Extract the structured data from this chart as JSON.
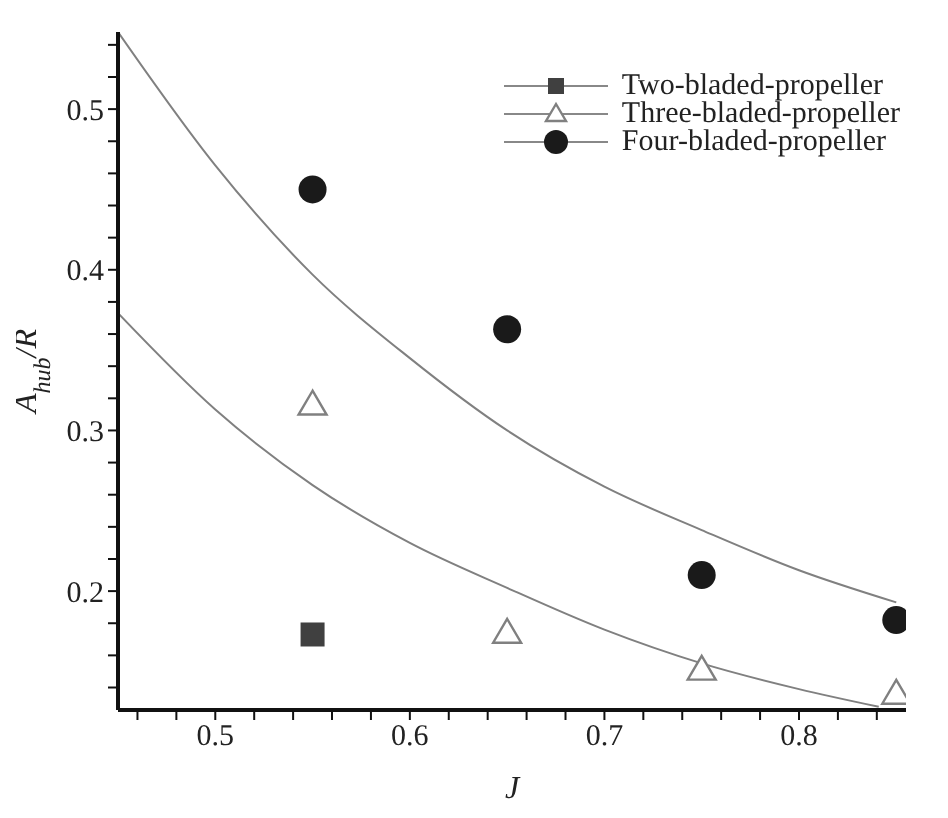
{
  "chart_data": {
    "type": "scatter",
    "xlabel": "J",
    "ylabel": "A$_{hub}$/R",
    "xlim": [
      0.45,
      0.855
    ],
    "ylim": [
      0.126,
      0.548
    ],
    "xticks": [
      {
        "value": 0.46,
        "label": null
      },
      {
        "value": 0.48,
        "label": null
      },
      0.5,
      {
        "value": 0.52,
        "label": null
      },
      {
        "value": 0.54,
        "label": null
      },
      {
        "value": 0.56,
        "label": null
      },
      {
        "value": 0.58,
        "label": null
      },
      0.6,
      {
        "value": 0.62,
        "label": null
      },
      {
        "value": 0.64,
        "label": null
      },
      {
        "value": 0.66,
        "label": null
      },
      {
        "value": 0.68,
        "label": null
      },
      0.7,
      {
        "value": 0.72,
        "label": null
      },
      {
        "value": 0.74,
        "label": null
      },
      {
        "value": 0.76,
        "label": null
      },
      {
        "value": 0.78,
        "label": null
      },
      0.8,
      {
        "value": 0.82,
        "label": null
      },
      {
        "value": 0.84,
        "label": null
      }
    ],
    "yticks": [
      {
        "value": 0.14,
        "label": null
      },
      {
        "value": 0.16,
        "label": null
      },
      {
        "value": 0.18,
        "label": null
      },
      0.2,
      {
        "value": 0.22,
        "label": null
      },
      {
        "value": 0.24,
        "label": null
      },
      {
        "value": 0.26,
        "label": null
      },
      {
        "value": 0.28,
        "label": null
      },
      0.3,
      {
        "value": 0.32,
        "label": null
      },
      {
        "value": 0.34,
        "label": null
      },
      {
        "value": 0.36,
        "label": null
      },
      {
        "value": 0.38,
        "label": null
      },
      0.4,
      {
        "value": 0.42,
        "label": null
      },
      {
        "value": 0.44,
        "label": null
      },
      {
        "value": 0.46,
        "label": null
      },
      {
        "value": 0.48,
        "label": null
      },
      0.5,
      {
        "value": 0.52,
        "label": null
      },
      {
        "value": 0.54,
        "label": null
      }
    ],
    "grid": false,
    "legend": "top right",
    "x": [
      0.55,
      0.65,
      0.75,
      0.85
    ],
    "series": [
      {
        "name": "Two-bladed-propeller",
        "color": "#404040",
        "marker": "square",
        "x": [
          0.55
        ],
        "values": [
          0.173
        ]
      },
      {
        "name": "Three-bladed-propeller",
        "color": "#808080",
        "marker": "triangle",
        "values": [
          0.316,
          0.174,
          0.151,
          0.136
        ]
      },
      {
        "name": "Four-bladed-propeller",
        "color": "#1a1a1a",
        "marker": "circle",
        "values": [
          0.45,
          0.363,
          0.21,
          0.182
        ]
      },
      {
        "type": "line",
        "color": "#808080",
        "marker": "none",
        "x": [
          0.45,
          0.5,
          0.55,
          0.6,
          0.65,
          0.7,
          0.75,
          0.8,
          0.85
        ],
        "values": [
          0.548,
          0.465,
          0.397,
          0.345,
          0.3,
          0.265,
          0.238,
          0.213,
          0.193
        ]
      },
      {
        "type": "line",
        "color": "#808080",
        "marker": "none",
        "x": [
          0.45,
          0.5,
          0.55,
          0.6,
          0.65,
          0.7,
          0.75,
          0.8,
          0.841
        ],
        "values": [
          0.373,
          0.313,
          0.266,
          0.23,
          0.202,
          0.176,
          0.155,
          0.139,
          0.128
        ]
      }
    ]
  }
}
